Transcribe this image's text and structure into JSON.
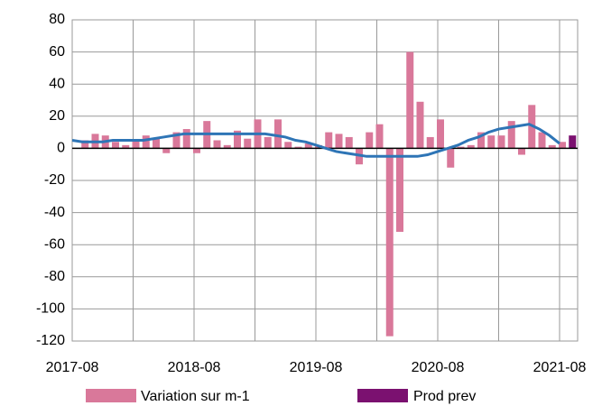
{
  "chart_data": {
    "type": "bar",
    "x": [
      "2017-08",
      "2017-09",
      "2017-10",
      "2017-11",
      "2017-12",
      "2018-01",
      "2018-02",
      "2018-03",
      "2018-04",
      "2018-05",
      "2018-06",
      "2018-07",
      "2018-08",
      "2018-09",
      "2018-10",
      "2018-11",
      "2018-12",
      "2019-01",
      "2019-02",
      "2019-03",
      "2019-04",
      "2019-05",
      "2019-06",
      "2019-07",
      "2019-08",
      "2019-09",
      "2019-10",
      "2019-11",
      "2019-12",
      "2020-01",
      "2020-02",
      "2020-03",
      "2020-04",
      "2020-05",
      "2020-06",
      "2020-07",
      "2020-08",
      "2020-09",
      "2020-10",
      "2020-11",
      "2020-12",
      "2021-01",
      "2021-02",
      "2021-03",
      "2021-04",
      "2021-05",
      "2021-06",
      "2021-07",
      "2021-08",
      "2021-09"
    ],
    "series": [
      {
        "name": "Variation sur m-1",
        "color": "#d9789a",
        "values": [
          null,
          5,
          9,
          8,
          4,
          2,
          5,
          8,
          6,
          -3,
          10,
          12,
          -3,
          17,
          5,
          2,
          11,
          6,
          18,
          7,
          18,
          4,
          1,
          3,
          2,
          10,
          9,
          7,
          -10,
          10,
          15,
          -117,
          -52,
          60,
          29,
          7,
          18,
          -12,
          1,
          2,
          10,
          8,
          8,
          17,
          -4,
          27,
          10,
          2,
          4,
          null
        ]
      },
      {
        "name": "Prod prev",
        "color": "#7b1170",
        "values": [
          null,
          null,
          null,
          null,
          null,
          null,
          null,
          null,
          null,
          null,
          null,
          null,
          null,
          null,
          null,
          null,
          null,
          null,
          null,
          null,
          null,
          null,
          null,
          null,
          null,
          null,
          null,
          null,
          null,
          null,
          null,
          null,
          null,
          null,
          null,
          null,
          null,
          null,
          null,
          null,
          null,
          null,
          null,
          null,
          null,
          null,
          null,
          null,
          null,
          8
        ]
      },
      {
        "type": "line",
        "color": "#2e75b6",
        "values": [
          5,
          4,
          4,
          4,
          5,
          5,
          5,
          5,
          6,
          7,
          8,
          9,
          9,
          9,
          9,
          9,
          9,
          9,
          9,
          9,
          8,
          7,
          5,
          4,
          2,
          0,
          -2,
          -3,
          -4,
          -5,
          -5,
          -5,
          -5,
          -5,
          -5,
          -4,
          -2,
          0,
          2,
          5,
          7,
          10,
          12,
          13,
          14,
          15,
          12,
          8,
          3,
          null
        ]
      }
    ],
    "xticks": [
      "2017-08",
      "2018-08",
      "2019-08",
      "2020-08",
      "2021-08"
    ],
    "ylim": [
      -120,
      80
    ],
    "yticks": [
      -120,
      -100,
      -80,
      -60,
      -40,
      -20,
      0,
      20,
      40,
      60,
      80
    ],
    "grid": true
  }
}
